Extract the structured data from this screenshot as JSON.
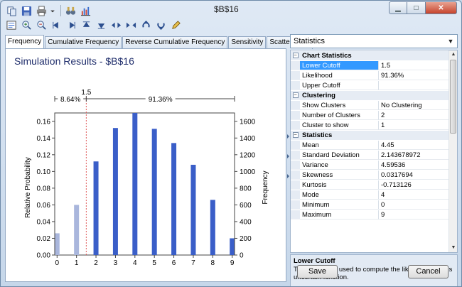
{
  "window": {
    "title": "$B$16"
  },
  "toolbar1": [
    "copy-icon",
    "save-icon",
    "print-icon",
    "dropdown-arrow-icon",
    "binoculars-icon",
    "chart-icon"
  ],
  "toolbar2": [
    "properties-icon",
    "zoom-in-icon",
    "zoom-out-icon",
    "arrow-left-end-icon",
    "arrow-right-end-icon",
    "arrow-up-end-icon",
    "arrow-down-end-icon",
    "slide-left-icon",
    "slide-right-icon",
    "rotate-up-icon",
    "rotate-down-icon",
    "edit-pencil-icon"
  ],
  "tabs": [
    {
      "label": "Frequency",
      "active": true
    },
    {
      "label": "Cumulative Frequency"
    },
    {
      "label": "Reverse Cumulative Frequency"
    },
    {
      "label": "Sensitivity"
    },
    {
      "label": "Scatter Plots"
    }
  ],
  "chart_data": {
    "type": "bar",
    "title": "Simulation Results - $B$16",
    "xlabel": "",
    "ylabel": "Relative Probability",
    "y2label": "Frequency",
    "categories": [
      "0",
      "1",
      "2",
      "3",
      "4",
      "5",
      "6",
      "7",
      "8",
      "9"
    ],
    "x": [
      0,
      1,
      2,
      3,
      4,
      5,
      6,
      7,
      8,
      9
    ],
    "values": [
      0.026,
      0.06,
      0.112,
      0.152,
      0.17,
      0.151,
      0.134,
      0.108,
      0.066,
      0.02
    ],
    "ylim": [
      0,
      0.17
    ],
    "y2lim": [
      0,
      1700
    ],
    "yticks": [
      "0.00",
      "0.02",
      "0.04",
      "0.06",
      "0.08",
      "0.10",
      "0.12",
      "0.14",
      "0.16"
    ],
    "y2ticks": [
      "0",
      "200",
      "400",
      "600",
      "800",
      "1000",
      "1200",
      "1400",
      "1600"
    ],
    "cutoff": 1.5,
    "cutoff_label": "1.5",
    "left_label": "8.64%",
    "right_label": "91.36%",
    "colors": {
      "bar": "#3a5ec8",
      "bar_below": "#a9b6dc",
      "cutoff": "#e05a5a",
      "title": "#1f2d6b"
    }
  },
  "properties": {
    "selector": "Statistics",
    "rows": [
      {
        "type": "cat",
        "name": "Chart Statistics"
      },
      {
        "name": "Lower Cutoff",
        "value": "1.5",
        "selected": true
      },
      {
        "name": "Likelihood",
        "value": "91.36%"
      },
      {
        "name": "Upper Cutoff",
        "value": ""
      },
      {
        "type": "cat",
        "name": "Clustering"
      },
      {
        "name": "Show Clusters",
        "value": "No Clustering"
      },
      {
        "name": "Number of Clusters",
        "value": "2"
      },
      {
        "name": "Cluster to show",
        "value": "1"
      },
      {
        "type": "cat",
        "name": "Statistics"
      },
      {
        "name": "Mean",
        "value": "4.45"
      },
      {
        "name": "Standard Deviation",
        "value": "2.143678972"
      },
      {
        "name": "Variance",
        "value": "4.59536"
      },
      {
        "name": "Skewness",
        "value": "0.0317694"
      },
      {
        "name": "Kurtosis",
        "value": "-0.713126"
      },
      {
        "name": "Mode",
        "value": "4"
      },
      {
        "name": "Minimum",
        "value": "0"
      },
      {
        "name": "Maximum",
        "value": "9"
      }
    ]
  },
  "description": {
    "title": "Lower Cutoff",
    "text": "The lower limit used to compute the likelihood for this uncertain function."
  },
  "buttons": {
    "save": "Save",
    "cancel": "Cancel"
  }
}
